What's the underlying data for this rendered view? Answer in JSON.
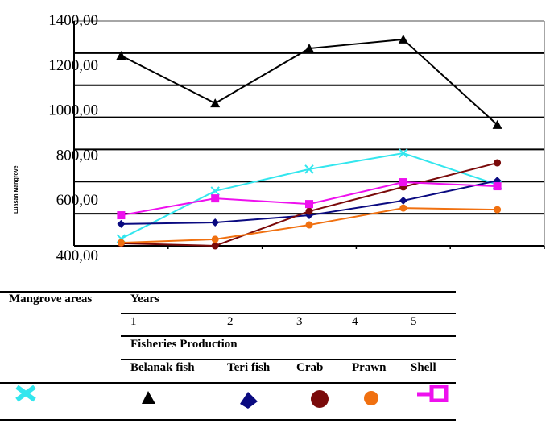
{
  "chart_data": {
    "type": "line",
    "title": "",
    "xlabel": "",
    "ylabel": "Luasan Mangrove",
    "ylim": [
      400,
      1400
    ],
    "y_ticks": [
      1400,
      1200,
      1000,
      800,
      600,
      400
    ],
    "y_tick_labels": [
      "1400,00",
      "1200,00",
      "1000,00",
      "800,00",
      "600,00",
      "400,00"
    ],
    "x": [
      1,
      2,
      3,
      4,
      5
    ],
    "grid": true,
    "series": [
      {
        "name": "Mangrove areas",
        "color": "#33e6ee",
        "marker": "x",
        "values": [
          432,
          644,
          741,
          812,
          672
        ]
      },
      {
        "name": "Belanak fish",
        "color": "#000000",
        "marker": "triangle",
        "values": [
          1246,
          1034,
          1278,
          1318,
          938
        ]
      },
      {
        "name": "Teri fish",
        "color": "#0a0a80",
        "marker": "diamond",
        "values": [
          497,
          504,
          536,
          601,
          690
        ]
      },
      {
        "name": "Crab",
        "color": "#7a0a0a",
        "marker": "circle",
        "values": [
          411,
          400,
          554,
          662,
          769
        ]
      },
      {
        "name": "Prawn",
        "color": "#f07010",
        "marker": "circle",
        "values": [
          414,
          429,
          493,
          568,
          561
        ]
      },
      {
        "name": "Shell",
        "color": "#ee10ee",
        "marker": "square",
        "values": [
          536,
          611,
          586,
          683,
          665
        ]
      }
    ]
  },
  "legend_table": {
    "mangrove_header": "Mangrove areas",
    "years_header": "Years",
    "years": [
      "1",
      "2",
      "3",
      "4",
      "5"
    ],
    "fisheries_header": "Fisheries Production",
    "species": [
      "Belanak fish",
      "Teri fish",
      "Crab",
      "Prawn",
      "Shell"
    ]
  }
}
